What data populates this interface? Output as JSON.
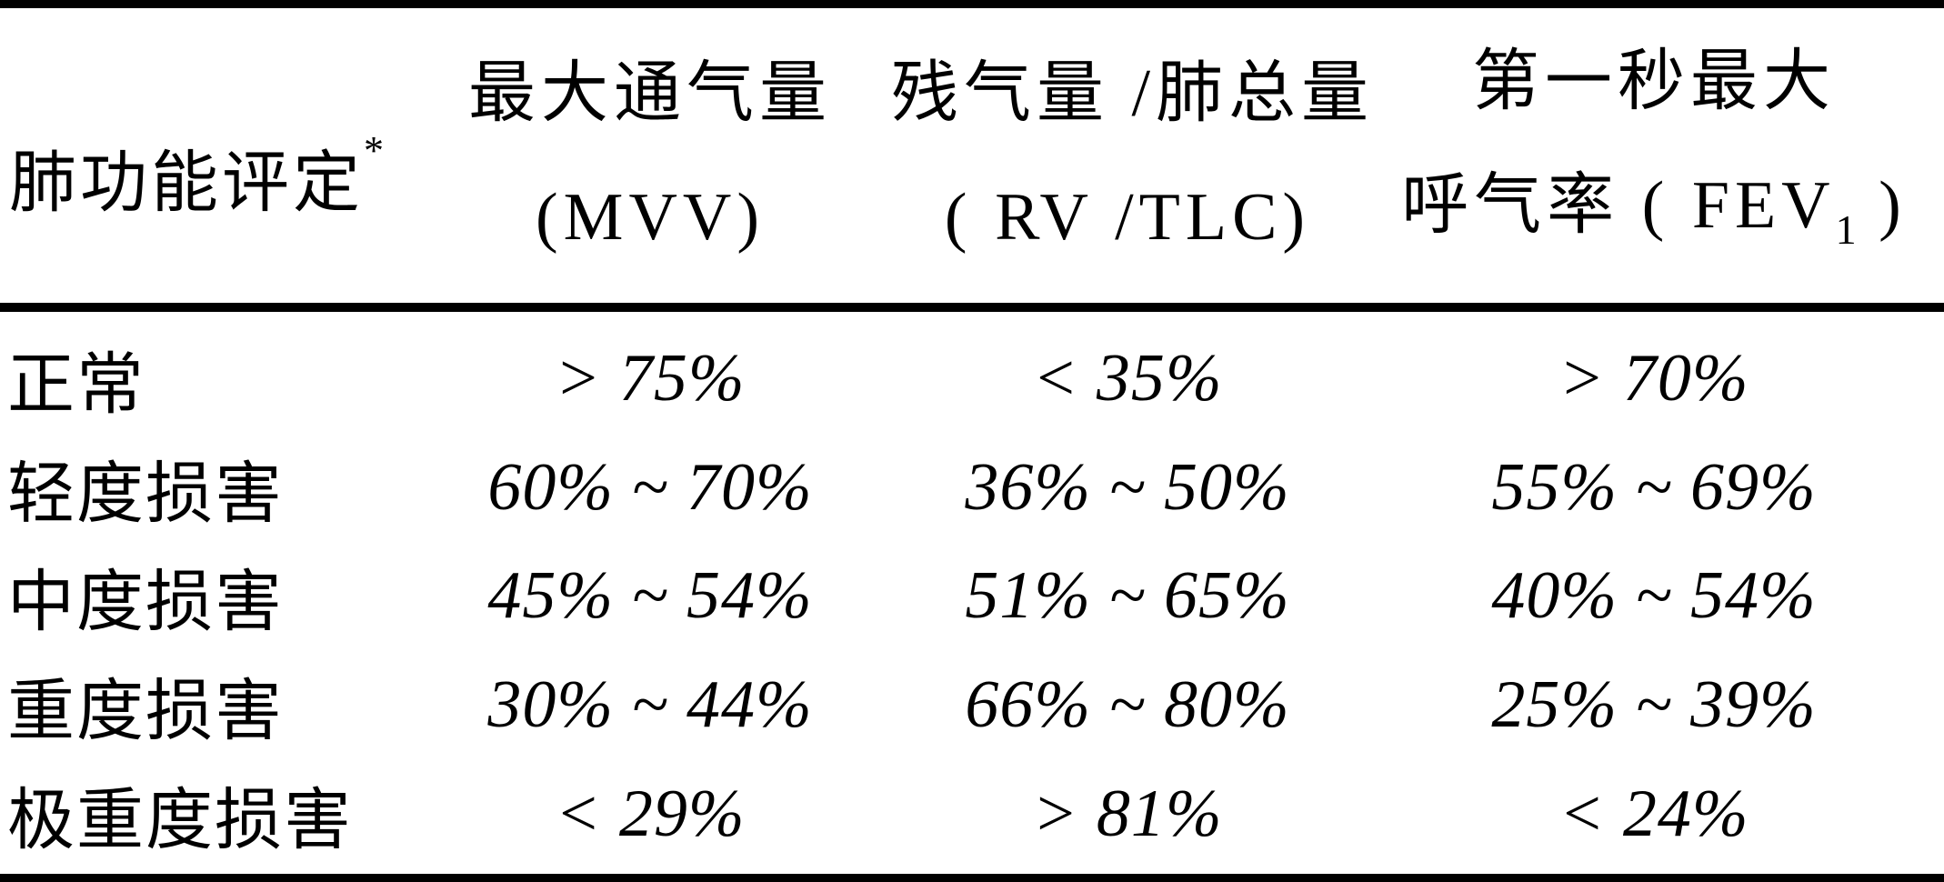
{
  "table": {
    "title_semantic": "肺功能评定表",
    "colors": {
      "text": "#000000",
      "background": "#ffffff",
      "rule": "#000000"
    },
    "header": {
      "col1": {
        "text": "肺功能评定",
        "superscript": "*"
      },
      "col2": {
        "line1": "最大通气量",
        "line2": "(MVV)"
      },
      "col3": {
        "line1": "残气量 /肺总量",
        "line2": "( RV /TLC)"
      },
      "col4": {
        "line1": "第一秒最大",
        "line2_prefix": "呼气率 ( FEV",
        "line2_subscript": "1",
        "line2_suffix": " )"
      }
    },
    "rows": [
      {
        "label": "正常",
        "mvv": "> 75%",
        "rv_tlc": "< 35%",
        "fev1": "> 70%"
      },
      {
        "label": "轻度损害",
        "mvv": "60% ~ 70%",
        "rv_tlc": "36% ~ 50%",
        "fev1": "55% ~ 69%"
      },
      {
        "label": "中度损害",
        "mvv": "45% ~ 54%",
        "rv_tlc": "51% ~ 65%",
        "fev1": "40% ~ 54%"
      },
      {
        "label": "重度损害",
        "mvv": "30% ~ 44%",
        "rv_tlc": "66% ~ 80%",
        "fev1": "25% ~ 39%"
      },
      {
        "label": "极重度损害",
        "mvv": "< 29%",
        "rv_tlc": "> 81%",
        "fev1": "< 24%"
      }
    ]
  }
}
